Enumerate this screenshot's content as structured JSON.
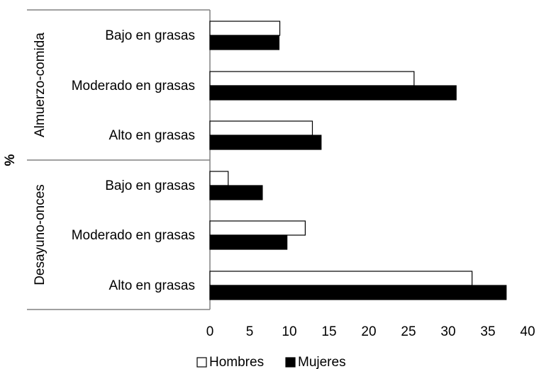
{
  "chart_data": {
    "type": "bar",
    "orientation": "horizontal",
    "ylabel": "%",
    "groups": [
      {
        "label": "Almuerzo-comida",
        "categories": [
          "Bajo en grasas",
          "Moderado en grasas",
          "Alto en grasas"
        ]
      },
      {
        "label": "Desayuno-onces",
        "categories": [
          "Bajo en grasas",
          "Moderado en grasas",
          "Alto en grasas"
        ]
      }
    ],
    "series": [
      {
        "name": "Hombres",
        "color": "#ffffff",
        "values": [
          8.8,
          25.7,
          12.9,
          2.3,
          12.0,
          33.0
        ]
      },
      {
        "name": "Mujeres",
        "color": "#000000",
        "values": [
          8.7,
          31.0,
          14.0,
          6.6,
          9.7,
          37.3
        ]
      }
    ],
    "xlim": [
      0,
      40
    ],
    "xticks": [
      "0",
      "5",
      "10",
      "15",
      "20",
      "25",
      "30",
      "35",
      "40"
    ],
    "legend_position": "bottom",
    "grid": false
  }
}
